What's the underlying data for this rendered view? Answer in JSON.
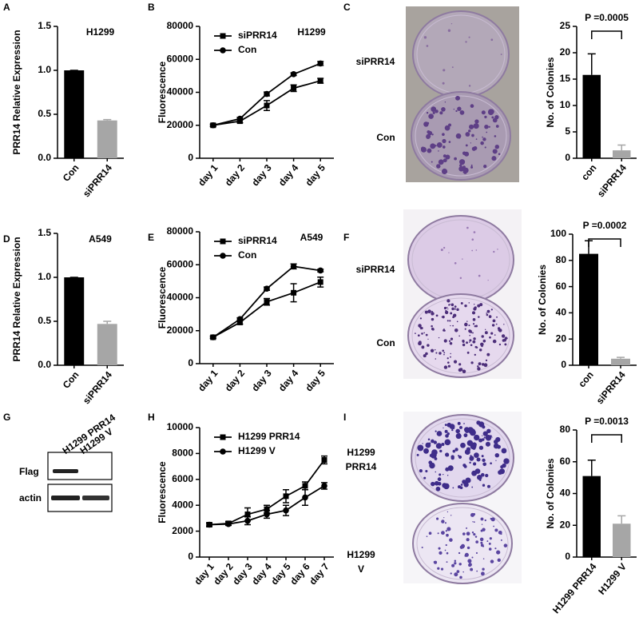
{
  "panel_labels": [
    "A",
    "B",
    "C",
    "D",
    "E",
    "F",
    "G",
    "H",
    "I"
  ],
  "dishes": [
    {
      "top": [
        "siPRR14"
      ],
      "bottom": [
        "Con"
      ]
    },
    {
      "top": [
        "siPRR14"
      ],
      "bottom": [
        "Con"
      ]
    },
    {
      "top": [
        "H1299",
        "PRR14"
      ],
      "bottom": [
        "H1299",
        "V"
      ]
    }
  ],
  "blot": {
    "lanes": [
      "H1299 PRR14",
      "H1299 V"
    ],
    "rows": [
      "Flag",
      "actin"
    ]
  },
  "chart_data": [
    {
      "type": "bar",
      "title": "H1299",
      "y_label": "PRR14 Relative Expression",
      "categories": [
        "Con",
        "siPRR14"
      ],
      "values": [
        1.0,
        0.43
      ],
      "errors": [
        0,
        0.01
      ],
      "colors": [
        "#000000",
        "#a6a6a6"
      ],
      "ylim": [
        0,
        1.5
      ],
      "yticks": [
        {
          "value": 0,
          "label": "0.0"
        },
        0.5,
        {
          "value": 1,
          "label": "1.0"
        },
        1.5
      ]
    },
    {
      "type": "line",
      "title": "H1299",
      "y_label": "Fluorescence",
      "categories": [
        "day 1",
        "day 2",
        "day 3",
        "day 4",
        "day 5"
      ],
      "series": [
        {
          "name": "siPRR14",
          "color": "#000000",
          "marker": "square",
          "values": [
            20000,
            22500,
            32000,
            42500,
            47000
          ],
          "errors": [
            800,
            1000,
            3000,
            2000,
            1500
          ]
        },
        {
          "name": "Con",
          "color": "#000000",
          "marker": "circle",
          "values": [
            20000,
            24000,
            39000,
            51000,
            57500
          ],
          "errors": [
            500,
            800,
            1200,
            800,
            1200
          ]
        }
      ],
      "ylim": [
        0,
        80000
      ],
      "yticks": [
        0,
        20000,
        40000,
        60000,
        80000
      ]
    },
    {
      "type": "bar",
      "annotation": "P =0.0005",
      "y_label": "No. of Colonies",
      "categories": [
        "con",
        "siPRR14"
      ],
      "values": [
        15.8,
        1.5
      ],
      "errors": [
        4,
        1
      ],
      "colors": [
        "#000000",
        "#a6a6a6"
      ],
      "ylim": [
        0,
        25
      ],
      "yticks": [
        0,
        5,
        10,
        15,
        20,
        25
      ]
    },
    {
      "type": "bar",
      "title": "A549",
      "y_label": "PRR14 Relative Expression",
      "categories": [
        "Con",
        "siPRR14"
      ],
      "values": [
        1.0,
        0.47
      ],
      "errors": [
        0,
        0.03
      ],
      "colors": [
        "#000000",
        "#a6a6a6"
      ],
      "ylim": [
        0,
        1.5
      ],
      "yticks": [
        {
          "value": 0,
          "label": "0.0"
        },
        0.5,
        {
          "value": 1,
          "label": "1.0"
        },
        1.5
      ]
    },
    {
      "type": "line",
      "title": "A549",
      "y_label": "Fluorescence",
      "categories": [
        "day 1",
        "day 2",
        "day 3",
        "day 4",
        "day 5"
      ],
      "series": [
        {
          "name": "siPRR14",
          "color": "#000000",
          "marker": "square",
          "values": [
            16000,
            25000,
            37500,
            43000,
            49500
          ],
          "errors": [
            800,
            1000,
            2000,
            5500,
            3000
          ]
        },
        {
          "name": "Con",
          "color": "#000000",
          "marker": "circle",
          "values": [
            16000,
            27000,
            45500,
            59000,
            56500
          ],
          "errors": [
            500,
            800,
            1000,
            1500,
            800
          ]
        }
      ],
      "ylim": [
        0,
        80000
      ],
      "yticks": [
        0,
        20000,
        40000,
        60000,
        80000
      ]
    },
    {
      "type": "bar",
      "annotation": "P =0.0002",
      "y_label": "No. of Colonies",
      "categories": [
        "con",
        "siPRR14"
      ],
      "values": [
        85,
        5
      ],
      "errors": [
        10,
        1
      ],
      "colors": [
        "#000000",
        "#a6a6a6"
      ],
      "ylim": [
        0,
        100
      ],
      "yticks": [
        0,
        20,
        40,
        60,
        80,
        100
      ]
    },
    {
      "type": "line",
      "y_label": "Fluorescence",
      "categories": [
        "day 1",
        "day 2",
        "day 3",
        "day 4",
        "day 5",
        "day 6",
        "day 7"
      ],
      "series": [
        {
          "name": "H1299 PRR14",
          "color": "#000000",
          "marker": "square",
          "values": [
            2500,
            2600,
            3300,
            3700,
            4700,
            5500,
            7500
          ],
          "errors": [
            150,
            150,
            500,
            300,
            500,
            300,
            300
          ]
        },
        {
          "name": "H1299 V",
          "color": "#000000",
          "marker": "circle",
          "values": [
            2500,
            2550,
            2800,
            3300,
            3600,
            4600,
            5500
          ],
          "errors": [
            100,
            100,
            300,
            300,
            400,
            600,
            250
          ]
        }
      ],
      "ylim": [
        0,
        10000
      ],
      "yticks": [
        0,
        2000,
        4000,
        6000,
        8000,
        10000
      ]
    },
    {
      "type": "bar",
      "annotation": "P =0.0013",
      "y_label": "No. of Colonies",
      "categories": [
        "H1299 PRR14",
        "H1299 V"
      ],
      "values": [
        51,
        21
      ],
      "errors": [
        10,
        5
      ],
      "colors": [
        "#000000",
        "#a6a6a6"
      ],
      "ylim": [
        0,
        80
      ],
      "yticks": [
        0,
        20,
        40,
        60,
        80
      ]
    }
  ]
}
